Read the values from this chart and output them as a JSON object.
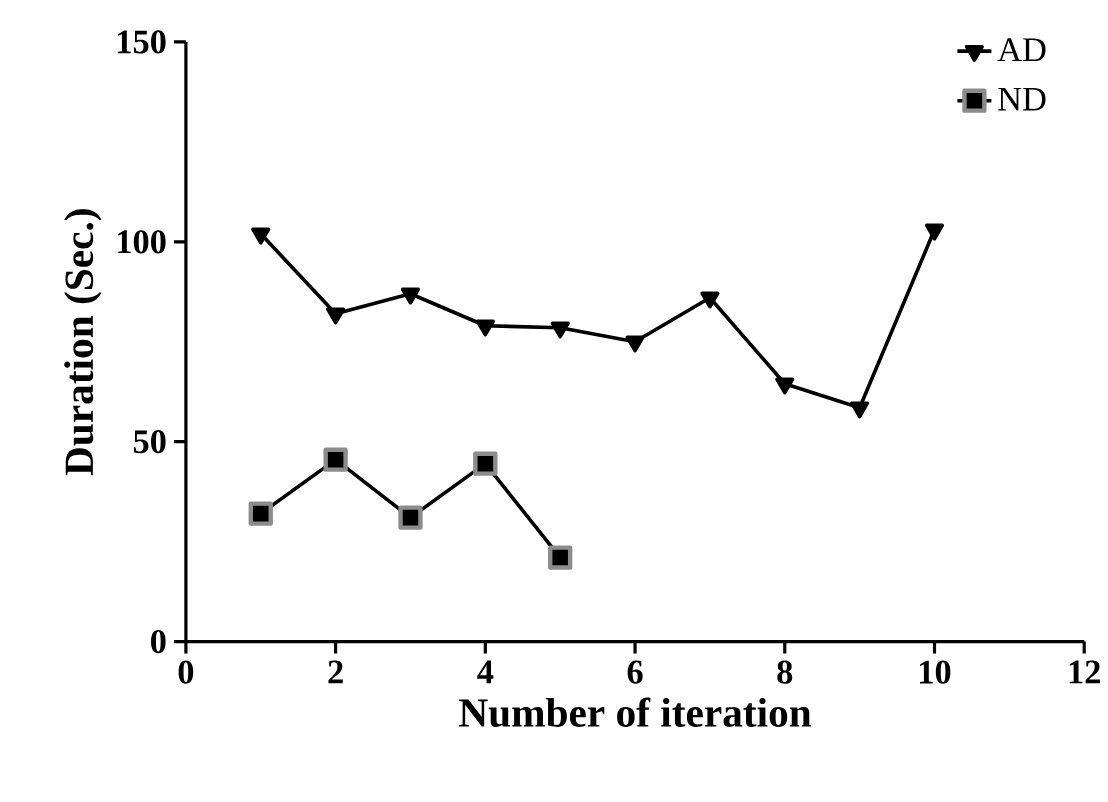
{
  "chart_data": {
    "type": "line",
    "xlabel": "Number of iteration",
    "ylabel": "Duration (Sec.)",
    "series": [
      {
        "name": "AD",
        "color": "#000000",
        "marker": "triangle",
        "x": [
          1,
          2,
          3,
          4,
          5,
          6,
          7,
          8,
          9,
          10
        ],
        "values": [
          102,
          82,
          87,
          79,
          78.5,
          75,
          86,
          64.5,
          58.5,
          103
        ]
      },
      {
        "name": "ND",
        "color": "#000000",
        "marker": "square",
        "x": [
          1,
          2,
          3,
          4,
          5
        ],
        "values": [
          32,
          45.5,
          31,
          44.5,
          21
        ]
      }
    ],
    "xlim": [
      0,
      12
    ],
    "xticks": [
      0,
      2,
      4,
      6,
      8,
      10,
      12
    ],
    "ylim": [
      0,
      150
    ],
    "yticks": [
      0,
      50,
      100,
      150
    ],
    "legend": "top right",
    "grid": false,
    "line_style": "solid"
  }
}
